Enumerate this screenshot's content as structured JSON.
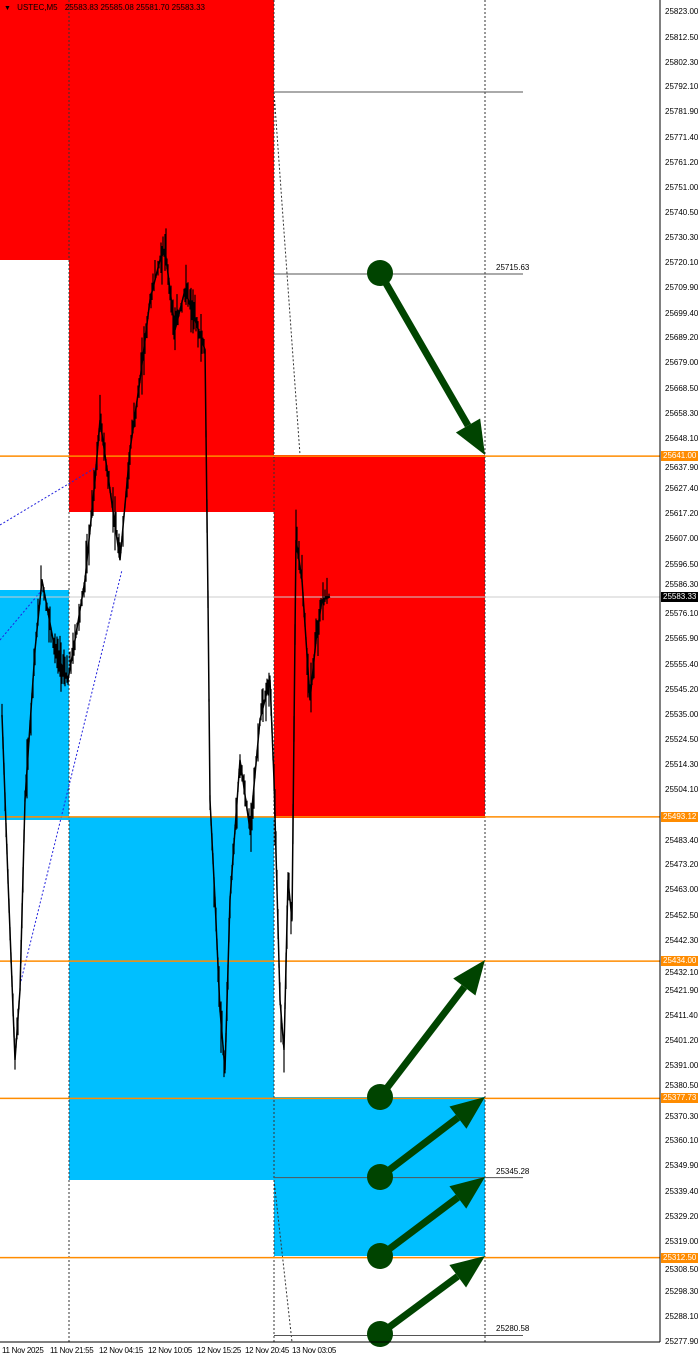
{
  "header": {
    "symbol": "USTEC,M5",
    "ohlc": "25583.83 25585.08 25581.70 25583.33"
  },
  "colors": {
    "supply_zone": "#ff0000",
    "demand_zone": "#00bfff",
    "level_line": "#ff8c00",
    "arrow": "#004400",
    "price": "#000000"
  },
  "price_axis": {
    "labels": [
      "25823.00",
      "25812.50",
      "25802.30",
      "25792.10",
      "25781.90",
      "25771.40",
      "25761.20",
      "25751.00",
      "25740.50",
      "25730.30",
      "25720.10",
      "25709.90",
      "25699.40",
      "25689.20",
      "25679.00",
      "25668.50",
      "25658.30",
      "25648.10",
      "25637.90",
      "25627.40",
      "25617.20",
      "25607.00",
      "25596.50",
      "25586.30",
      "25576.10",
      "25565.90",
      "25555.40",
      "25545.20",
      "25535.00",
      "25524.50",
      "25514.30",
      "25504.10",
      "25483.40",
      "25473.20",
      "25463.00",
      "25452.50",
      "25442.30",
      "25432.10",
      "25421.90",
      "25411.40",
      "25401.20",
      "25391.00",
      "25380.50",
      "25370.30",
      "25360.10",
      "25349.90",
      "25339.40",
      "25329.20",
      "25319.00",
      "25308.50",
      "25298.30",
      "25288.10",
      "25277.90"
    ],
    "current_price": "25583.33",
    "level_tags": [
      "25641.00",
      "25493.12",
      "25434.00",
      "25377.73",
      "25312.50"
    ]
  },
  "time_axis": [
    "11 Nov 2025",
    "11 Nov 21:55",
    "12 Nov 04:15",
    "12 Nov 10:05",
    "12 Nov 15:25",
    "12 Nov 20:45",
    "13 Nov 03:05"
  ],
  "line_labels": [
    "25715.63",
    "25345.28",
    "25280.58"
  ],
  "price_path": [
    25534.9,
    25467.3,
    25393.5,
    25422.2,
    25500.1,
    25561.5,
    25590.2,
    25561.5,
    25549.3,
    25565.6,
    25590.2,
    25631.2,
    25655.8,
    25627.1,
    25598.4,
    25643.5,
    25672.2,
    25705.0,
    25721.4,
    25725.5,
    25692.7,
    25709.1,
    25696.8,
    25684.5,
    25582.0,
    25500.1,
    25459.1,
    25414.0,
    25389.4,
    25459.1,
    25516.5,
    25487.8,
    25532.9,
    25549.3,
    25508.3,
    25418.1,
    25397.6,
    25467.3,
    25450.9,
    25606.6,
    25590.2,
    25541.1,
    25565.6,
    25582.0,
    25583.33
  ]
}
